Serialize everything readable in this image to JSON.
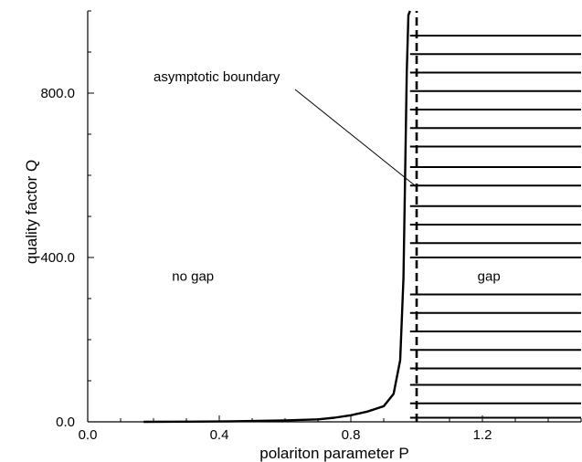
{
  "chart_data": {
    "type": "line",
    "xlabel": "polariton parameter P",
    "ylabel": "quality factor Q",
    "xlim": [
      0.0,
      1.5
    ],
    "ylim": [
      0.0,
      1000.0
    ],
    "x_ticks": [
      0.0,
      0.4,
      0.8,
      1.2
    ],
    "x_tick_labels": [
      "0.0",
      "0.4",
      "0.8",
      "1.2"
    ],
    "y_ticks": [
      0.0,
      400.0,
      800.0
    ],
    "y_tick_labels": [
      "0.0",
      "400.0",
      "800.0"
    ],
    "grid": false,
    "series": [
      {
        "role": "boundary-curve",
        "style": "solid",
        "x": [
          0.17,
          0.3,
          0.4,
          0.5,
          0.6,
          0.7,
          0.75,
          0.8,
          0.85,
          0.9,
          0.93,
          0.95,
          0.96,
          0.965,
          0.97,
          0.975,
          0.98
        ],
        "y": [
          0,
          0.5,
          1,
          2,
          3.5,
          6,
          10,
          16,
          25,
          38,
          68,
          150,
          350,
          600,
          850,
          990,
          1000
        ]
      },
      {
        "role": "asymptote",
        "style": "dashed",
        "x": [
          1.0,
          1.0
        ],
        "y": [
          0,
          1000
        ]
      }
    ],
    "gap_region": {
      "x_from": 0.98,
      "x_to": 1.5,
      "hatch_y": [
        940,
        895,
        850,
        805,
        760,
        715,
        670,
        620,
        575,
        525,
        480,
        435,
        400,
        310,
        265,
        220,
        175,
        130,
        90,
        45,
        10
      ]
    },
    "annotations": {
      "asymptotic_boundary": {
        "text": "asymptotic boundary",
        "x": 0.2,
        "y": 840,
        "arrow_to_x": 0.995,
        "arrow_to_y": 575
      },
      "no_gap": {
        "text": "no gap",
        "x": 0.32,
        "y": 355
      },
      "gap": {
        "text": "gap",
        "x": 1.22,
        "y": 355
      }
    }
  }
}
